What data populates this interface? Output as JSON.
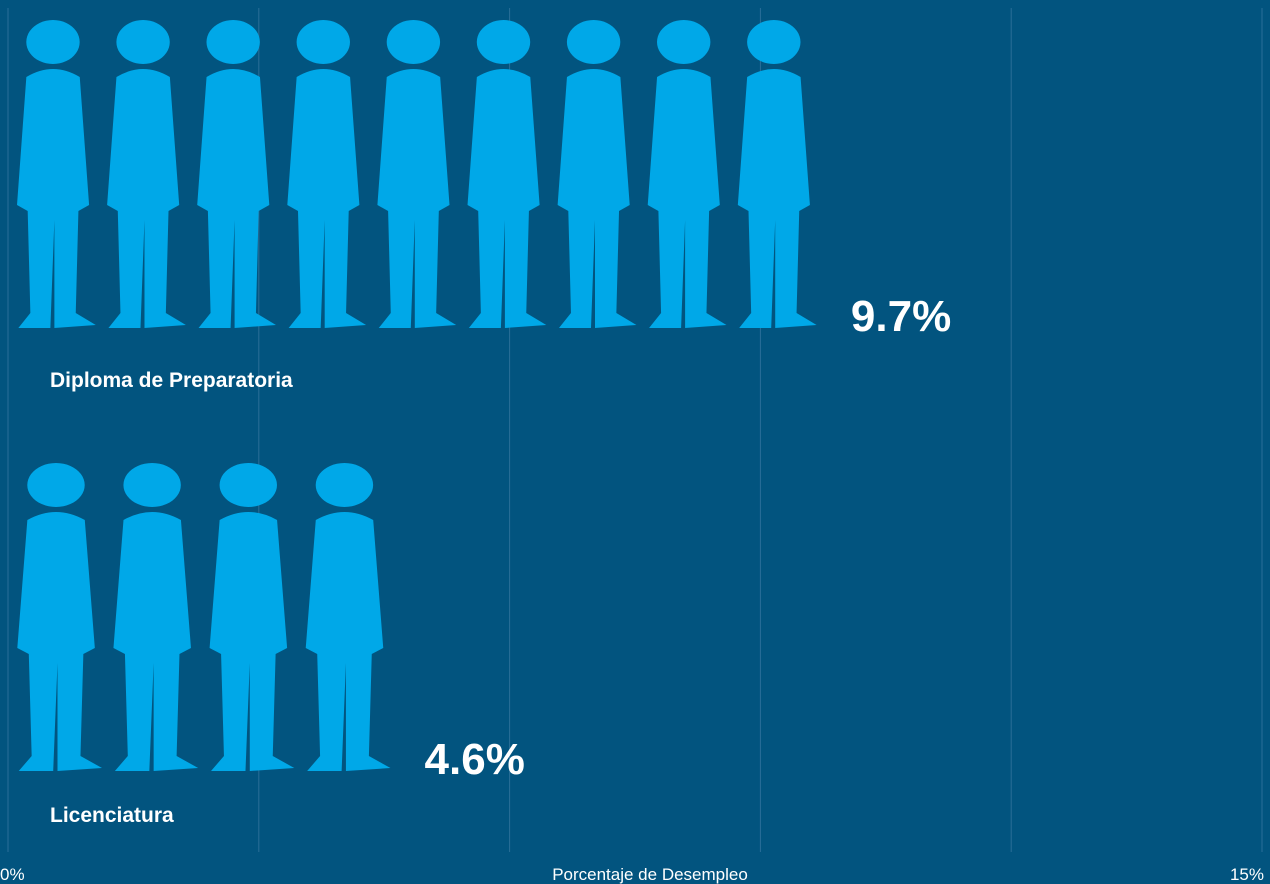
{
  "chart_data": {
    "type": "bar",
    "orientation": "horizontal",
    "xlabel": "Porcentaje de Desempleo",
    "categories": [
      "Diploma de Preparatoria",
      "Licenciatura"
    ],
    "values": [
      9.7,
      4.6
    ],
    "value_labels": [
      "9.7%",
      "4.6%"
    ],
    "color": "#00a8e8",
    "xlim": [
      0,
      15
    ],
    "xticks": [
      {
        "value": 0,
        "label": "0%"
      },
      {
        "value": 3,
        "label": null
      },
      {
        "value": 6,
        "label": null
      },
      {
        "value": 9,
        "label": null
      },
      {
        "value": 12,
        "label": null
      },
      {
        "value": 15,
        "label": "15%"
      }
    ],
    "grid": true
  }
}
